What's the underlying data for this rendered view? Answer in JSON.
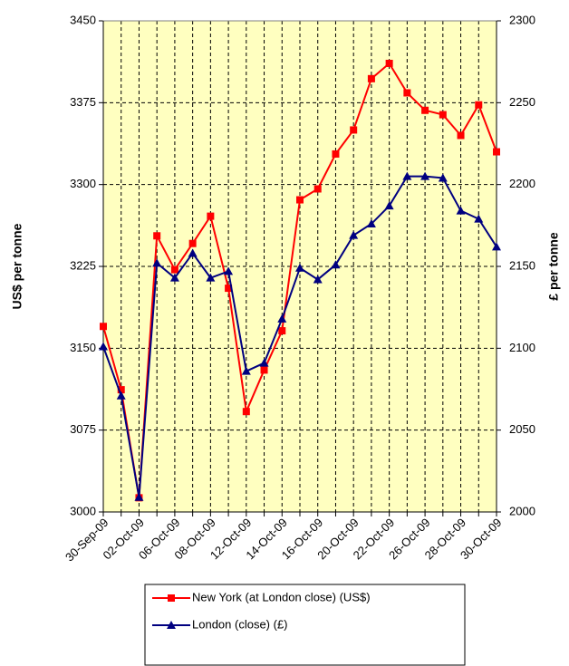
{
  "chart_data": {
    "type": "line",
    "categories": [
      "30-Sep-09",
      null,
      "02-Oct-09",
      null,
      "06-Oct-09",
      null,
      "08-Oct-09",
      null,
      "12-Oct-09",
      null,
      "14-Oct-09",
      null,
      "16-Oct-09",
      null,
      "20-Oct-09",
      null,
      "22-Oct-09",
      null,
      "26-Oct-09",
      null,
      "28-Oct-09",
      null,
      "30-Oct-09"
    ],
    "y_label": "US$ per tonne",
    "y2_label": "£ per tonne",
    "ylim": [
      3000,
      3450
    ],
    "yticks": [
      3000,
      3075,
      3150,
      3225,
      3300,
      3375,
      3450
    ],
    "y2lim": [
      2000,
      2300
    ],
    "y2ticks": [
      2000,
      2050,
      2100,
      2150,
      2200,
      2250,
      2300
    ],
    "grid": true,
    "legend": "bottom",
    "series": [
      {
        "name": "New York (at London close) (US$)",
        "color": "#ff0000",
        "marker": "square",
        "values": [
          3170,
          3112,
          3013,
          3253,
          3222,
          3246,
          3271,
          3205,
          3092,
          3130,
          3166,
          3286,
          3296,
          3328,
          3350,
          3397,
          3411,
          3384,
          3368,
          3364,
          3345,
          3373,
          3330
        ]
      },
      {
        "name": "London (close) (£)",
        "color": "#000080",
        "marker": "triangle",
        "axis": "y2",
        "values": [
          2101,
          2071,
          2009,
          2152,
          2143,
          2158,
          2143,
          2147,
          2086,
          2091,
          2118,
          2149,
          2142,
          2151,
          2169,
          2176,
          2187,
          2205,
          2205,
          2204,
          2184,
          2179,
          2162
        ]
      }
    ]
  }
}
